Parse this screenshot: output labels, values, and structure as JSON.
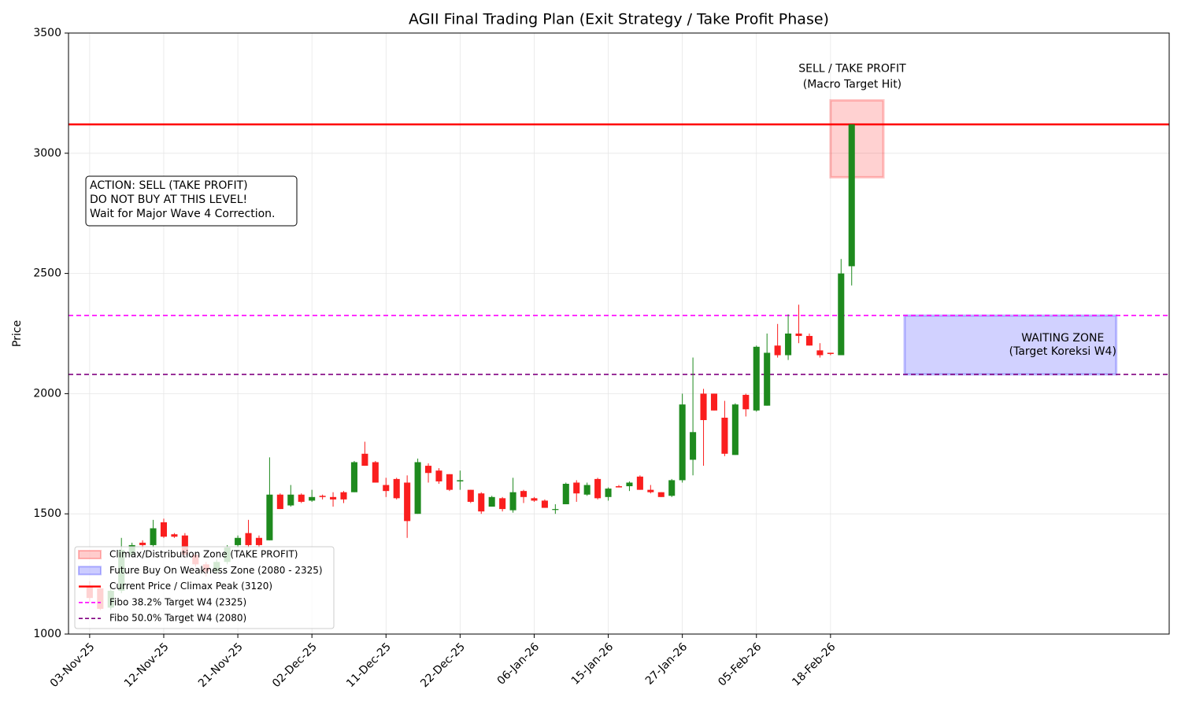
{
  "chart_data": {
    "type": "candlestick",
    "title": "AGII Final Trading Plan (Exit Strategy / Take Profit Phase)",
    "y_label": "Price",
    "categories": [
      "03-Nov-25",
      null,
      null,
      null,
      null,
      null,
      null,
      "12-Nov-25",
      null,
      null,
      null,
      null,
      null,
      null,
      "21-Nov-25",
      null,
      null,
      null,
      null,
      null,
      null,
      "02-Dec-25",
      null,
      null,
      null,
      null,
      null,
      null,
      "11-Dec-25",
      null,
      null,
      null,
      null,
      null,
      null,
      "22-Dec-25",
      null,
      null,
      null,
      null,
      null,
      null,
      "06-Jan-26",
      null,
      null,
      null,
      null,
      null,
      null,
      "15-Jan-26",
      null,
      null,
      null,
      null,
      null,
      null,
      "27-Jan-26",
      null,
      null,
      null,
      null,
      null,
      null,
      "05-Feb-26",
      null,
      null,
      null,
      null,
      null,
      null,
      "18-Feb-26",
      null,
      null
    ],
    "open": [
      1200,
      1190,
      1110,
      1180,
      1330,
      1380,
      1370,
      1465,
      1415,
      1410,
      1330,
      1290,
      1260,
      1300,
      1370,
      1420,
      1400,
      1390,
      1580,
      1535,
      1580,
      1555,
      1575,
      1570,
      1590,
      1590,
      1750,
      1715,
      1620,
      1645,
      1630,
      1500,
      1700,
      1680,
      1665,
      1635,
      1600,
      1585,
      1530,
      1565,
      1515,
      1595,
      1565,
      1555,
      1520,
      1540,
      1630,
      1580,
      1645,
      1570,
      1615,
      1615,
      1655,
      1600,
      1590,
      1575,
      1640,
      1725,
      2000,
      2000,
      1900,
      1745,
      1995,
      1930,
      1950,
      2200,
      2160,
      2250,
      2240,
      2180,
      2170,
      2160,
      2530
    ],
    "high": [
      1220,
      1200,
      1200,
      1400,
      1380,
      1390,
      1475,
      1480,
      1420,
      1420,
      1340,
      1300,
      1310,
      1370,
      1410,
      1475,
      1410,
      1735,
      1585,
      1620,
      1585,
      1600,
      1580,
      1590,
      1595,
      1720,
      1800,
      1720,
      1650,
      1650,
      1660,
      1730,
      1710,
      1690,
      1665,
      1680,
      1600,
      1590,
      1575,
      1570,
      1650,
      1600,
      1570,
      1560,
      1540,
      1630,
      1640,
      1630,
      1650,
      1610,
      1620,
      1635,
      1660,
      1620,
      1590,
      1645,
      2000,
      2150,
      2020,
      2000,
      1970,
      1960,
      2000,
      2200,
      2250,
      2290,
      2330,
      2370,
      2250,
      2210,
      2170,
      2560,
      3120
    ],
    "low": [
      1130,
      1100,
      1100,
      1170,
      1320,
      1350,
      1360,
      1400,
      1400,
      1320,
      1280,
      1240,
      1250,
      1290,
      1360,
      1360,
      1360,
      1390,
      1520,
      1530,
      1545,
      1550,
      1560,
      1530,
      1545,
      1590,
      1700,
      1630,
      1570,
      1560,
      1400,
      1500,
      1630,
      1625,
      1595,
      1600,
      1545,
      1500,
      1530,
      1510,
      1505,
      1545,
      1550,
      1525,
      1500,
      1540,
      1550,
      1575,
      1560,
      1555,
      1610,
      1595,
      1600,
      1585,
      1570,
      1570,
      1630,
      1660,
      1700,
      1930,
      1740,
      1745,
      1905,
      1925,
      1950,
      2150,
      2140,
      2210,
      2200,
      2150,
      2160,
      2160,
      2450
    ],
    "close": [
      1150,
      1105,
      1180,
      1350,
      1370,
      1370,
      1440,
      1405,
      1405,
      1330,
      1290,
      1260,
      1300,
      1360,
      1400,
      1370,
      1370,
      1580,
      1520,
      1580,
      1550,
      1570,
      1570,
      1560,
      1560,
      1715,
      1700,
      1630,
      1595,
      1565,
      1470,
      1715,
      1670,
      1635,
      1600,
      1640,
      1550,
      1510,
      1570,
      1520,
      1590,
      1570,
      1555,
      1525,
      1520,
      1625,
      1585,
      1620,
      1565,
      1605,
      1610,
      1630,
      1600,
      1590,
      1570,
      1640,
      1955,
      1840,
      1890,
      1930,
      1750,
      1955,
      1935,
      2195,
      2170,
      2160,
      2250,
      2240,
      2200,
      2160,
      2165,
      2500,
      3120
    ],
    "up_color": "#1e8a1e",
    "down_color": "#fa1e1e",
    "xlim": [
      -2,
      102
    ],
    "ylim": [
      1000,
      3500
    ],
    "yticks": [
      1000,
      1500,
      2000,
      2500,
      3000,
      3500
    ],
    "grid": true,
    "zones": [
      {
        "name": "Climax/Distribution Zone (TAKE PROFIT)",
        "color": "#ff0000",
        "x": [
          70,
          75
        ],
        "y": [
          2900,
          3220
        ],
        "annotation": [
          "SELL / TAKE PROFIT",
          "(Macro Target Hit)"
        ],
        "annotation_color": "#ff0000"
      },
      {
        "name": "Future Buy On Weakness Zone (2080 - 2325)",
        "color": "#0000ff",
        "x": [
          77,
          97
        ],
        "y": [
          2080,
          2325
        ],
        "annotation": [
          "WAITING ZONE",
          "(Target Koreksi W4)"
        ],
        "annotation_color": "#00008b"
      }
    ],
    "hlines": [
      {
        "name": "Current Price / Climax Peak (3120)",
        "value": 3120,
        "color": "#ff0000",
        "dashed": false
      },
      {
        "name": "Fibo 38.2% Target W4 (2325)",
        "value": 2325,
        "color": "#ff00ff",
        "dashed": true
      },
      {
        "name": "Fibo 50.0% Target W4 (2080)",
        "value": 2080,
        "color": "#800080",
        "dashed": true
      }
    ],
    "action_box": [
      "ACTION: SELL (TAKE PROFIT)",
      " DO NOT BUY AT THIS LEVEL!",
      "Wait for Major Wave 4 Correction."
    ],
    "action_color": "#8b0000",
    "legend": "lower left"
  }
}
